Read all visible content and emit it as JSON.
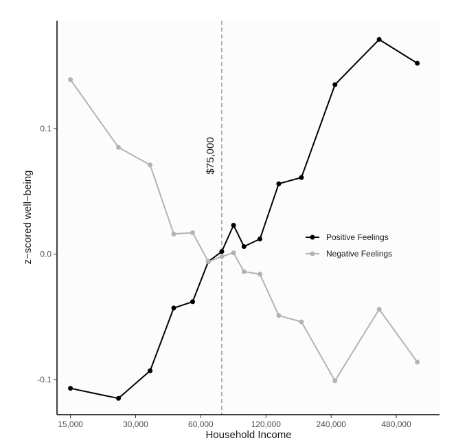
{
  "chart_data": {
    "type": "line",
    "xlabel": "Household Income",
    "ylabel": "z−scored well−being",
    "x_scale": "log2",
    "x_ticks": [
      15000,
      30000,
      60000,
      120000,
      240000,
      480000
    ],
    "x_tick_labels": [
      "15,000",
      "30,000",
      "60,000",
      "120,000",
      "240,000",
      "480,000"
    ],
    "xlim": [
      13000,
      760000
    ],
    "y_ticks": [
      -0.1,
      0.0,
      0.1
    ],
    "y_tick_labels": [
      "-0.1",
      "0.0",
      "0.1"
    ],
    "ylim": [
      -0.128,
      0.186
    ],
    "grid": false,
    "legend_position": "right-center",
    "colors": {
      "positive": "#000000",
      "negative": "#b3b3b3",
      "reference_line": "#999999"
    },
    "reference_line": {
      "x": 75000,
      "label": "$75,000"
    },
    "series": [
      {
        "name": "Positive Feelings",
        "x": [
          15000,
          25000,
          35000,
          45000,
          55000,
          65000,
          75000,
          85000,
          95000,
          112500,
          137500,
          175000,
          250000,
          400000,
          600000
        ],
        "y": [
          -0.107,
          -0.115,
          -0.093,
          -0.043,
          -0.038,
          -0.006,
          0.002,
          0.023,
          0.006,
          0.012,
          0.056,
          0.061,
          0.135,
          0.171,
          0.152
        ]
      },
      {
        "name": "Negative Feelings",
        "x": [
          15000,
          25000,
          35000,
          45000,
          55000,
          65000,
          75000,
          85000,
          95000,
          112500,
          137500,
          175000,
          250000,
          400000,
          600000
        ],
        "y": [
          0.139,
          0.085,
          0.071,
          0.016,
          0.017,
          -0.006,
          -0.002,
          0.001,
          -0.014,
          -0.016,
          -0.049,
          -0.054,
          -0.101,
          -0.044,
          -0.086
        ]
      }
    ]
  }
}
